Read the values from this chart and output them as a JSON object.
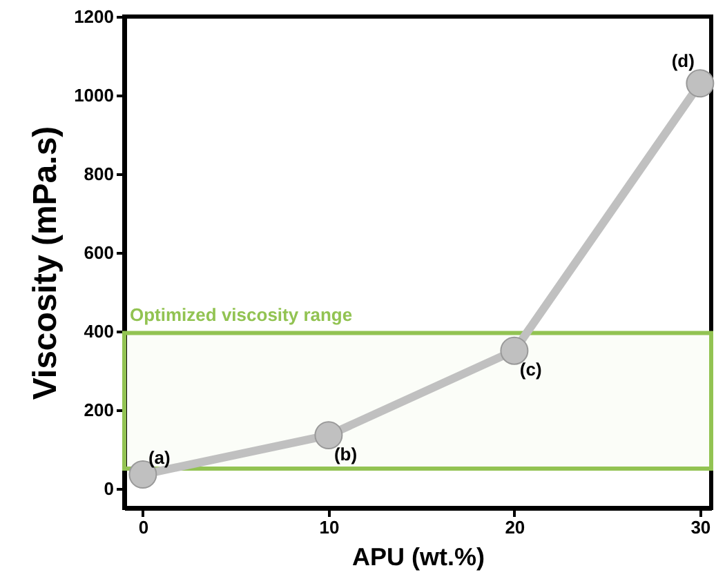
{
  "chart_data": {
    "type": "line",
    "xlabel": "APU (wt.%)",
    "ylabel": "Viscosity (mPa.s)",
    "x": [
      0,
      10,
      20,
      30
    ],
    "series": [
      {
        "color": "#c0c0c0",
        "values": [
          35,
          135,
          350,
          1030
        ]
      }
    ],
    "xlim": [
      -1,
      30.6
    ],
    "ylim": [
      -50,
      1200
    ],
    "xticks": [
      0,
      10,
      20,
      30
    ],
    "yticks": [
      0,
      200,
      400,
      600,
      800,
      1000,
      1200
    ],
    "grid": false,
    "marker": "circle",
    "line_style": "solid",
    "bands": [
      {
        "axis": "y",
        "from": 50,
        "to": 395,
        "label": "Optimized viscosity range",
        "color": "#92c352"
      }
    ],
    "annotations": [
      {
        "text": "(a)",
        "x": 0,
        "y": 35
      },
      {
        "text": "(b)",
        "x": 10,
        "y": 135
      },
      {
        "text": "(c)",
        "x": 20,
        "y": 350
      },
      {
        "text": "(d)",
        "x": 30,
        "y": 1030
      }
    ]
  }
}
